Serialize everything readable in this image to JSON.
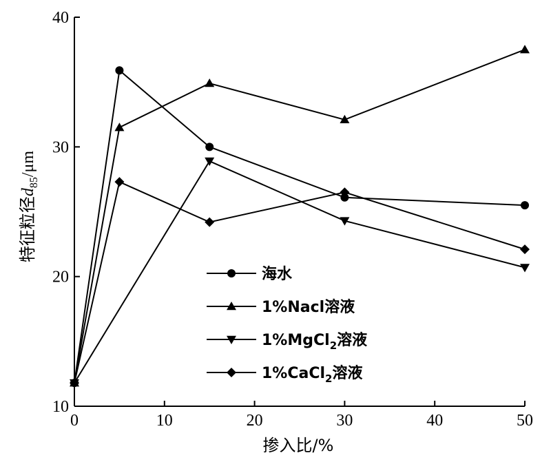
{
  "chart_data": {
    "type": "line",
    "xlabel": "掺入比/%",
    "ylabel_main": "特征粒径",
    "ylabel_var": "d",
    "ylabel_sub": "85",
    "ylabel_unit": "/μm",
    "xlim": [
      0,
      50
    ],
    "ylim": [
      10,
      40
    ],
    "xticks": [
      0,
      10,
      20,
      30,
      40,
      50
    ],
    "yticks": [
      10,
      20,
      30,
      40
    ],
    "grid": false,
    "legend_position": "lower-left",
    "series": [
      {
        "name": "海水",
        "legend": {
          "prefix": "海水",
          "sub": "",
          "suffix": ""
        },
        "marker": "circle",
        "x": [
          0,
          5,
          15,
          30,
          50
        ],
        "y": [
          11.8,
          35.9,
          30.0,
          26.1,
          25.5
        ]
      },
      {
        "name": "1%Nacl溶液",
        "legend": {
          "prefix": "1%Nacl溶液",
          "sub": "",
          "suffix": ""
        },
        "marker": "triangle-up",
        "x": [
          0,
          5,
          15,
          30,
          50
        ],
        "y": [
          11.8,
          31.5,
          34.9,
          32.1,
          37.5
        ]
      },
      {
        "name": "1%MgCl2溶液",
        "legend": {
          "prefix": "1%MgCl",
          "sub": "2",
          "suffix": "溶液"
        },
        "marker": "triangle-down",
        "x": [
          0,
          15,
          30,
          50
        ],
        "y": [
          11.8,
          28.9,
          24.3,
          20.7
        ]
      },
      {
        "name": "1%CaCl2溶液",
        "legend": {
          "prefix": "1%CaCl",
          "sub": "2",
          "suffix": "溶液"
        },
        "marker": "diamond",
        "x": [
          0,
          5,
          15,
          30,
          50
        ],
        "y": [
          11.8,
          27.3,
          24.2,
          26.5,
          22.1
        ]
      }
    ]
  }
}
